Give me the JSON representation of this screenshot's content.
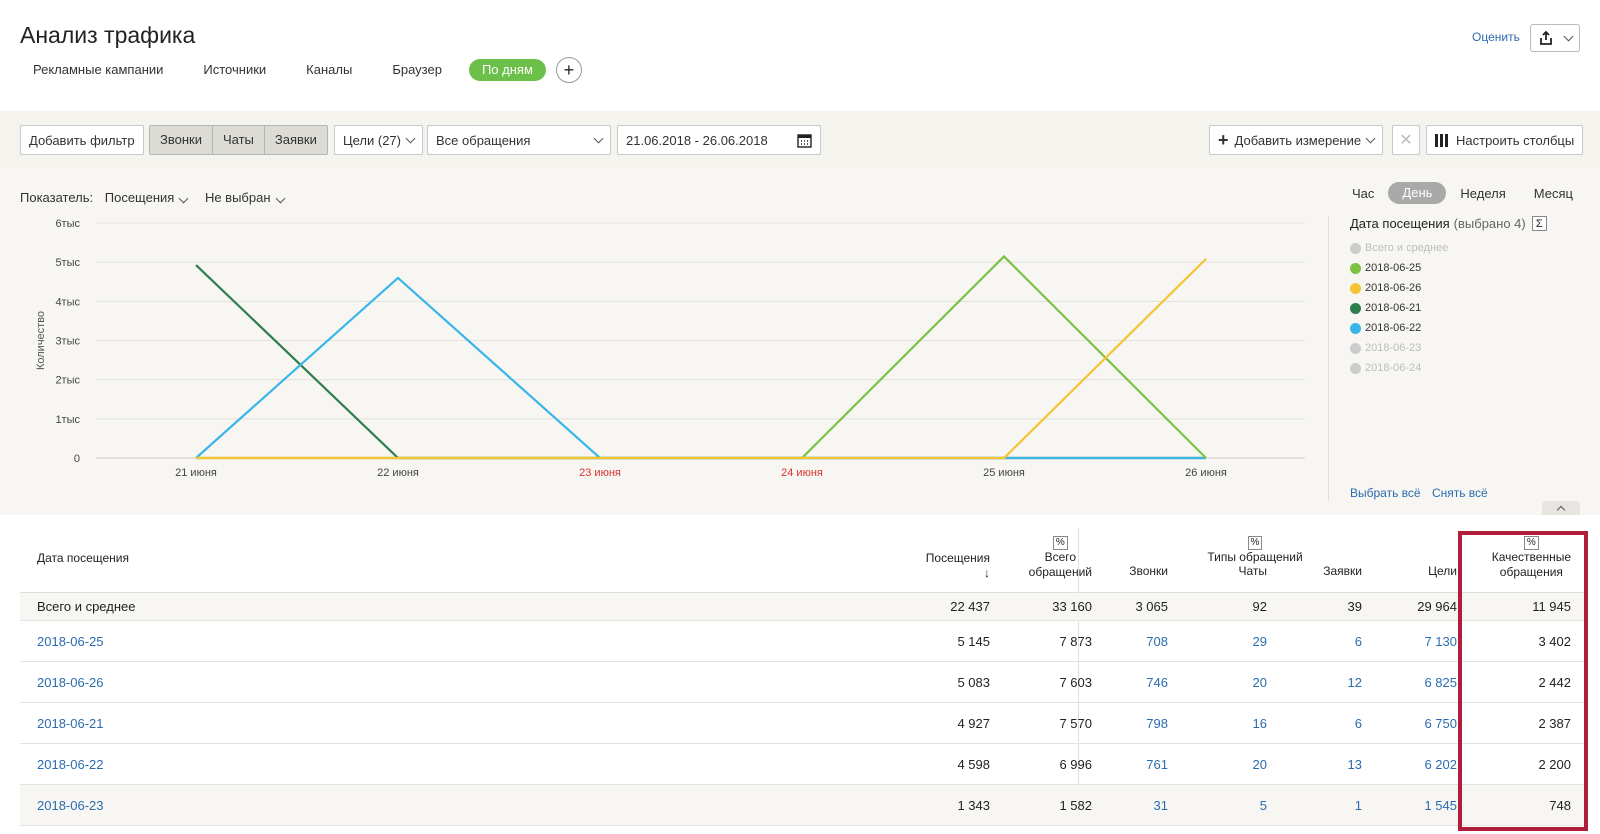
{
  "header": {
    "title": "Анализ трафика",
    "rate_label": "Оценить",
    "tabs": [
      {
        "label": "Рекламные кампании"
      },
      {
        "label": "Источники"
      },
      {
        "label": "Каналы"
      },
      {
        "label": "Браузер"
      },
      {
        "label": "По дням",
        "active": true
      }
    ]
  },
  "toolbar": {
    "add_filter": "Добавить фильтр",
    "types": [
      "Звонки",
      "Чаты",
      "Заявки"
    ],
    "goals": "Цели (27)",
    "appeals": "Все обращения",
    "date_range": "21.06.2018 - 26.06.2018",
    "add_dimension": "Добавить измерение",
    "configure_columns": "Настроить столбцы"
  },
  "chart": {
    "indicator_label": "Показатель:",
    "indicator_value": "Посещения",
    "indicator_second": "Не выбран",
    "periods": [
      "Час",
      "День",
      "Неделя",
      "Месяц"
    ],
    "active_period": "День"
  },
  "legend": {
    "title": "Дата посещения",
    "selected": "(выбрано 4)",
    "sigma": "Σ",
    "items": [
      {
        "label": "Всего и среднее",
        "color": "#cccccc",
        "dim": true
      },
      {
        "label": "2018-06-25",
        "color": "#7cc242",
        "dim": false
      },
      {
        "label": "2018-06-26",
        "color": "#f5c432",
        "dim": false
      },
      {
        "label": "2018-06-21",
        "color": "#2e7d4f",
        "dim": false
      },
      {
        "label": "2018-06-22",
        "color": "#3bb5e8",
        "dim": false
      },
      {
        "label": "2018-06-23",
        "color": "#cccccc",
        "dim": true
      },
      {
        "label": "2018-06-24",
        "color": "#cccccc",
        "dim": true
      }
    ],
    "select_all": "Выбрать всё",
    "deselect_all": "Снять всё"
  },
  "chart_data": {
    "type": "line",
    "ylabel": "Количество",
    "ylim": [
      0,
      6000
    ],
    "y_ticks": [
      "0",
      "1тыс",
      "2тыс",
      "3тыс",
      "4тыс",
      "5тыс",
      "6тыс"
    ],
    "categories": [
      "21 июня",
      "22 июня",
      "23 июня",
      "24 июня",
      "25 июня",
      "26 июня"
    ],
    "weekend_categories": [
      "23 июня",
      "24 июня"
    ],
    "series": [
      {
        "name": "2018-06-21",
        "color": "#2e7d4f",
        "values": [
          4927,
          0,
          0,
          0,
          0,
          0
        ]
      },
      {
        "name": "2018-06-22",
        "color": "#3bb5e8",
        "values": [
          0,
          4598,
          0,
          0,
          0,
          0
        ]
      },
      {
        "name": "2018-06-25",
        "color": "#7cc242",
        "values": [
          0,
          0,
          0,
          0,
          5145,
          0
        ]
      },
      {
        "name": "2018-06-26",
        "color": "#f5c432",
        "values": [
          0,
          0,
          0,
          0,
          0,
          5083
        ]
      }
    ]
  },
  "table": {
    "headers": {
      "date": "Дата посещения",
      "visits": "Посещения",
      "total_appeals_1": "Всего",
      "total_appeals_2": "обращений",
      "calls": "Звонки",
      "types_group": "Типы обращений",
      "chats": "Чаты",
      "requests": "Заявки",
      "goals": "Цели",
      "quality_1": "Качественные",
      "quality_2": "обращения",
      "pct": "%",
      "sort_arrow": "↓"
    },
    "total": {
      "date": "Всего и среднее",
      "visits": "22 437",
      "appeals": "33 160",
      "calls": "3 065",
      "chats": "92",
      "requests": "39",
      "goals": "29 964",
      "quality": "11 945"
    },
    "rows": [
      {
        "date": "2018-06-25",
        "visits": "5 145",
        "appeals": "7 873",
        "calls": "708",
        "chats": "29",
        "requests": "6",
        "goals": "7 130",
        "quality": "3 402"
      },
      {
        "date": "2018-06-26",
        "visits": "5 083",
        "appeals": "7 603",
        "calls": "746",
        "chats": "20",
        "requests": "12",
        "goals": "6 825",
        "quality": "2 442"
      },
      {
        "date": "2018-06-21",
        "visits": "4 927",
        "appeals": "7 570",
        "calls": "798",
        "chats": "16",
        "requests": "6",
        "goals": "6 750",
        "quality": "2 387"
      },
      {
        "date": "2018-06-22",
        "visits": "4 598",
        "appeals": "6 996",
        "calls": "761",
        "chats": "20",
        "requests": "13",
        "goals": "6 202",
        "quality": "2 200"
      },
      {
        "date": "2018-06-23",
        "visits": "1 343",
        "appeals": "1 582",
        "calls": "31",
        "chats": "5",
        "requests": "1",
        "goals": "1 545",
        "quality": "748"
      }
    ]
  }
}
